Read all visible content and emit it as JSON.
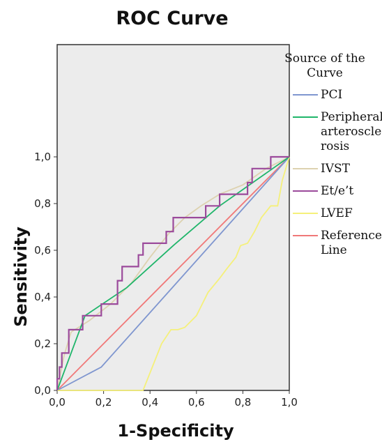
{
  "chart_data": {
    "type": "line",
    "title": "ROC Curve",
    "xlabel": "1-Specificity",
    "ylabel": "Sensitivity",
    "xlim": [
      0,
      1
    ],
    "ylim": [
      0,
      1
    ],
    "x_ticks": [
      "0,0",
      "0,2",
      "0,4",
      "0,6",
      "0,8",
      "1,0"
    ],
    "y_ticks": [
      "0,0",
      "0,2",
      "0,4",
      "0,6",
      "0,8",
      "1,0"
    ],
    "grid": false,
    "legend": {
      "title_lines": [
        "Source of the",
        "Curve"
      ],
      "placement": "right"
    },
    "series": [
      {
        "name": "PCI",
        "label_lines": [
          "PCI"
        ],
        "color": "#7f96cf",
        "x": [
          0,
          0.19,
          1
        ],
        "y": [
          0,
          0.1,
          1
        ]
      },
      {
        "name": "Peripheral arteroscle rosis",
        "label_lines": [
          "Peripheral",
          "arteroscle",
          "rosis"
        ],
        "color": "#1fb56a",
        "x": [
          0,
          0.12,
          0.3,
          0.5,
          0.7,
          1
        ],
        "y": [
          0,
          0.32,
          0.44,
          0.62,
          0.79,
          1
        ]
      },
      {
        "name": "IVST",
        "label_lines": [
          "IVST"
        ],
        "color": "#ddd2b0",
        "x": [
          0,
          0.03,
          0.06,
          0.14,
          0.23,
          0.32,
          0.4,
          0.48,
          0.55,
          0.62,
          0.7,
          0.8,
          0.9,
          1
        ],
        "y": [
          0,
          0.15,
          0.25,
          0.3,
          0.37,
          0.46,
          0.57,
          0.67,
          0.74,
          0.79,
          0.84,
          0.88,
          0.95,
          1
        ]
      },
      {
        "name": "Et/e’t",
        "label_lines": [
          "Et/e’t"
        ],
        "color": "#9b4a9b",
        "x": [
          0,
          0,
          0.01,
          0.01,
          0.02,
          0.02,
          0.05,
          0.05,
          0.11,
          0.11,
          0.19,
          0.19,
          0.26,
          0.26,
          0.28,
          0.28,
          0.35,
          0.35,
          0.37,
          0.37,
          0.47,
          0.47,
          0.5,
          0.5,
          0.64,
          0.64,
          0.7,
          0.7,
          0.82,
          0.82,
          0.84,
          0.84,
          0.92,
          0.92,
          1
        ],
        "y": [
          0,
          0.05,
          0.05,
          0.1,
          0.1,
          0.16,
          0.16,
          0.26,
          0.26,
          0.32,
          0.32,
          0.37,
          0.37,
          0.47,
          0.47,
          0.53,
          0.53,
          0.58,
          0.58,
          0.63,
          0.63,
          0.68,
          0.68,
          0.74,
          0.74,
          0.79,
          0.79,
          0.84,
          0.84,
          0.89,
          0.89,
          0.95,
          0.95,
          1,
          1
        ]
      },
      {
        "name": "LVEF",
        "label_lines": [
          "LVEF"
        ],
        "color": "#f5f07a",
        "x": [
          0,
          0.37,
          0.41,
          0.45,
          0.49,
          0.52,
          0.55,
          0.6,
          0.62,
          0.65,
          0.7,
          0.73,
          0.77,
          0.79,
          0.82,
          0.85,
          0.88,
          0.92,
          0.95,
          0.97,
          1
        ],
        "y": [
          0,
          0,
          0.1,
          0.2,
          0.26,
          0.26,
          0.27,
          0.32,
          0.36,
          0.42,
          0.48,
          0.52,
          0.57,
          0.62,
          0.63,
          0.68,
          0.74,
          0.79,
          0.79,
          0.9,
          1
        ]
      },
      {
        "name": "Reference Line",
        "label_lines": [
          "Reference",
          "Line"
        ],
        "color": "#f07878",
        "x": [
          0,
          1
        ],
        "y": [
          0,
          1
        ]
      }
    ]
  }
}
